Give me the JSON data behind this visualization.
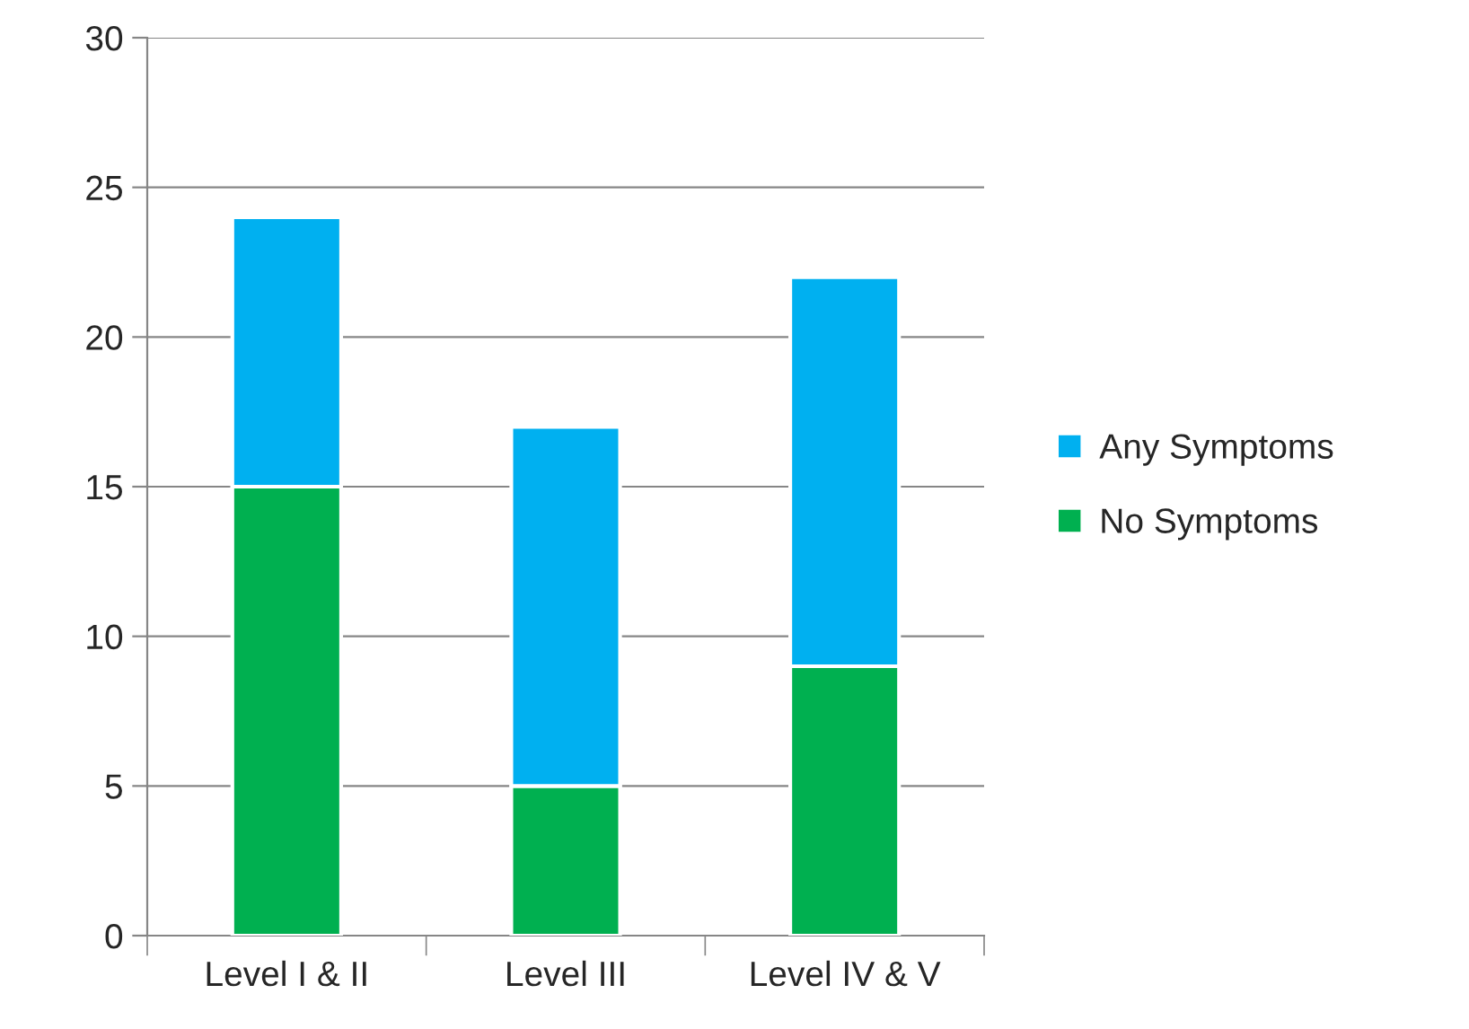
{
  "chart_data": {
    "type": "bar",
    "stacked": true,
    "categories": [
      "Level I & II",
      "Level III",
      "Level IV & V"
    ],
    "series": [
      {
        "name": "No Symptoms",
        "color": "#00b050",
        "values": [
          15,
          5,
          9
        ]
      },
      {
        "name": "Any Symptoms",
        "color": "#00b0f0",
        "values": [
          9,
          12,
          13
        ]
      }
    ],
    "ylim": [
      0,
      30
    ],
    "yticks": [
      0,
      5,
      10,
      15,
      20,
      25,
      30
    ],
    "grid": "y",
    "legend": "right"
  }
}
